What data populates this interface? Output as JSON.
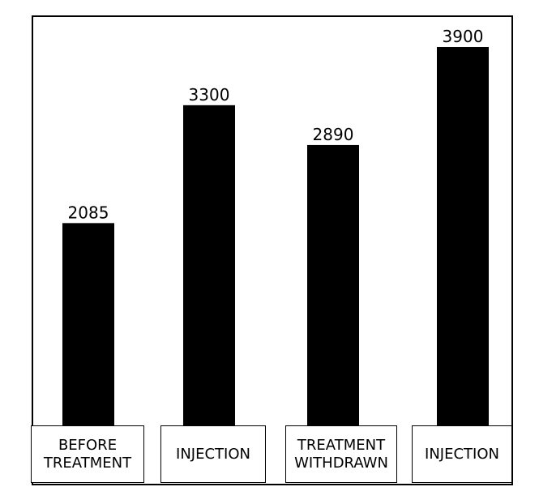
{
  "chart_data": {
    "type": "bar",
    "categories": [
      "BEFORE TREATMENT",
      "INJECTION",
      "TREATMENT WITHDRAWN",
      "INJECTION"
    ],
    "values": [
      2085,
      3300,
      2890,
      3900
    ],
    "color": "#000000"
  }
}
